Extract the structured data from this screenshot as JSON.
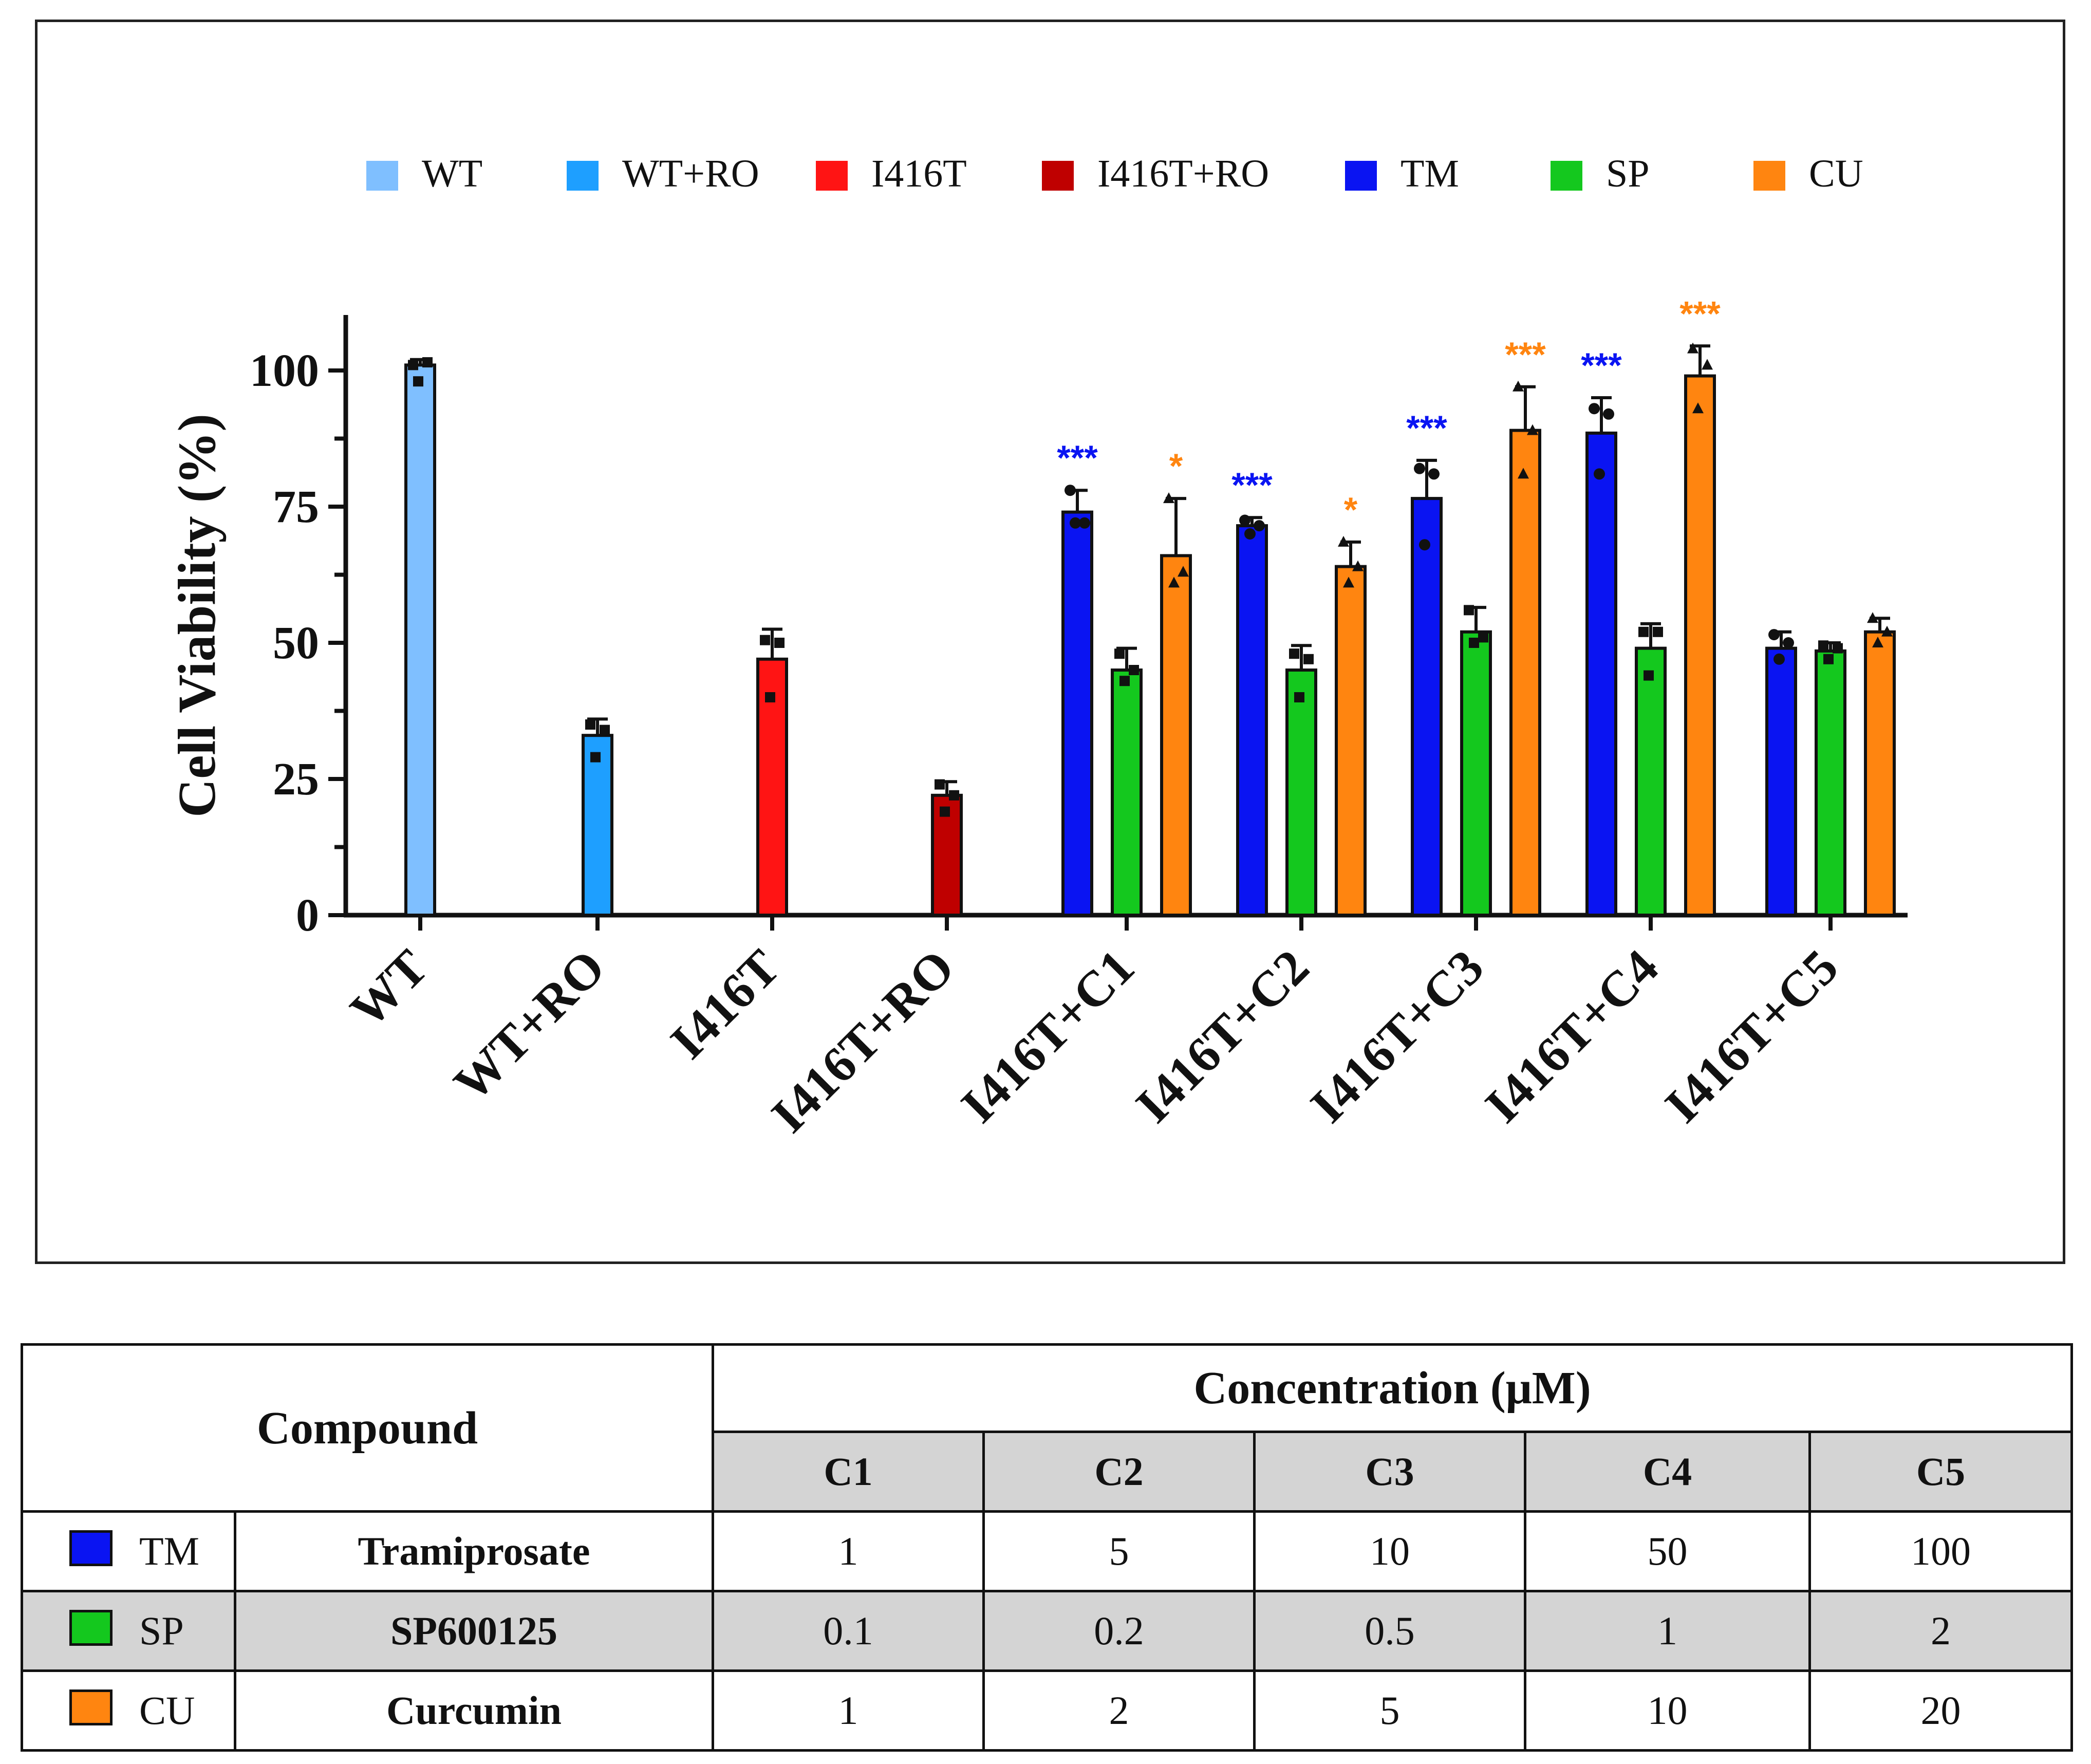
{
  "colors": {
    "WT": "#7fbfff",
    "WT+RO": "#1e9fff",
    "I416T": "#ff1414",
    "I416T+RO": "#bf0000",
    "TM": "#0a14f2",
    "SP": "#14c81e",
    "CU": "#ff8510"
  },
  "chart_data": {
    "type": "bar",
    "ylabel": "Cell Viability (%)",
    "ylim": [
      0,
      110
    ],
    "yticks": [
      "0",
      "25",
      "50",
      "75",
      "100"
    ],
    "legend": {
      "placement": "top",
      "entries": [
        {
          "key": "WT",
          "label": "WT"
        },
        {
          "key": "WT+RO",
          "label": "WT+RO"
        },
        {
          "key": "I416T",
          "label": "I416T"
        },
        {
          "key": "I416T+RO",
          "label": "I416T+RO"
        },
        {
          "key": "TM",
          "label": "TM"
        },
        {
          "key": "SP",
          "label": "SP"
        },
        {
          "key": "CU",
          "label": "CU"
        }
      ]
    },
    "categories": [
      "WT",
      "WT+RO",
      "I416T",
      "I416T+RO",
      "I416T+C1",
      "I416T+C2",
      "I416T+C3",
      "I416T+C4",
      "I416T+C5"
    ],
    "groups": [
      {
        "category": "WT",
        "bars": [
          {
            "series": "WT",
            "value": 101,
            "error": 1,
            "points": [
              101,
              101.5,
              98
            ],
            "marker": "square"
          }
        ]
      },
      {
        "category": "WT+RO",
        "bars": [
          {
            "series": "WT+RO",
            "value": 33,
            "error": 3,
            "points": [
              35,
              34,
              29
            ],
            "marker": "square"
          }
        ]
      },
      {
        "category": "I416T",
        "bars": [
          {
            "series": "I416T",
            "value": 47,
            "error": 5.5,
            "points": [
              50.5,
              50,
              40
            ],
            "marker": "square"
          }
        ]
      },
      {
        "category": "I416T+RO",
        "bars": [
          {
            "series": "I416T+RO",
            "value": 22,
            "error": 2.5,
            "points": [
              24,
              22,
              19
            ],
            "marker": "square"
          }
        ]
      },
      {
        "category": "I416T+C1",
        "bars": [
          {
            "series": "TM",
            "value": 74,
            "error": 4,
            "points": [
              78,
              72,
              72
            ],
            "marker": "circle",
            "sig": "***"
          },
          {
            "series": "SP",
            "value": 45,
            "error": 4,
            "points": [
              48,
              45,
              43
            ],
            "marker": "square"
          },
          {
            "series": "CU",
            "value": 66,
            "error": 10.5,
            "points": [
              76.5,
              63,
              61
            ],
            "marker": "triangle",
            "sig": "*"
          }
        ]
      },
      {
        "category": "I416T+C2",
        "bars": [
          {
            "series": "TM",
            "value": 71.5,
            "error": 1.5,
            "points": [
              72.5,
              71.5,
              70
            ],
            "marker": "circle",
            "sig": "***"
          },
          {
            "series": "SP",
            "value": 45,
            "error": 4.5,
            "points": [
              48,
              47,
              40
            ],
            "marker": "square"
          },
          {
            "series": "CU",
            "value": 64,
            "error": 4.5,
            "points": [
              68.5,
              64,
              61
            ],
            "marker": "triangle",
            "sig": "*"
          }
        ]
      },
      {
        "category": "I416T+C3",
        "bars": [
          {
            "series": "TM",
            "value": 76.5,
            "error": 7,
            "points": [
              82,
              81,
              68
            ],
            "marker": "circle",
            "sig": "***"
          },
          {
            "series": "SP",
            "value": 52,
            "error": 4.5,
            "points": [
              56,
              51,
              50
            ],
            "marker": "square"
          },
          {
            "series": "CU",
            "value": 89,
            "error": 8,
            "points": [
              97,
              89,
              81
            ],
            "marker": "triangle",
            "sig": "***"
          }
        ]
      },
      {
        "category": "I416T+C4",
        "bars": [
          {
            "series": "TM",
            "value": 88.5,
            "error": 6.5,
            "points": [
              93,
              92,
              81
            ],
            "marker": "circle",
            "sig": "***"
          },
          {
            "series": "SP",
            "value": 49,
            "error": 4.5,
            "points": [
              52,
              52,
              44
            ],
            "marker": "square"
          },
          {
            "series": "CU",
            "value": 99,
            "error": 5.5,
            "points": [
              104,
              101,
              93
            ],
            "marker": "triangle",
            "sig": "***"
          }
        ]
      },
      {
        "category": "I416T+C5",
        "bars": [
          {
            "series": "TM",
            "value": 49,
            "error": 3,
            "points": [
              51.5,
              50,
              47
            ],
            "marker": "circle"
          },
          {
            "series": "SP",
            "value": 48.5,
            "error": 1.5,
            "points": [
              49.5,
              49,
              47
            ],
            "marker": "square"
          },
          {
            "series": "CU",
            "value": 52,
            "error": 2.5,
            "points": [
              54.5,
              52,
              50
            ],
            "marker": "triangle"
          }
        ]
      }
    ]
  },
  "table": {
    "compound_header": "Compound",
    "concentration_header": "Concentration (μM)",
    "columns": [
      "C1",
      "C2",
      "C3",
      "C4",
      "C5"
    ],
    "rows": [
      {
        "abbr": "TM",
        "name": "Tramiprosate",
        "values": [
          "1",
          "5",
          "10",
          "50",
          "100"
        ]
      },
      {
        "abbr": "SP",
        "name": "SP600125",
        "values": [
          "0.1",
          "0.2",
          "0.5",
          "1",
          "2"
        ]
      },
      {
        "abbr": "CU",
        "name": "Curcumin",
        "values": [
          "1",
          "2",
          "5",
          "10",
          "20"
        ]
      }
    ]
  }
}
